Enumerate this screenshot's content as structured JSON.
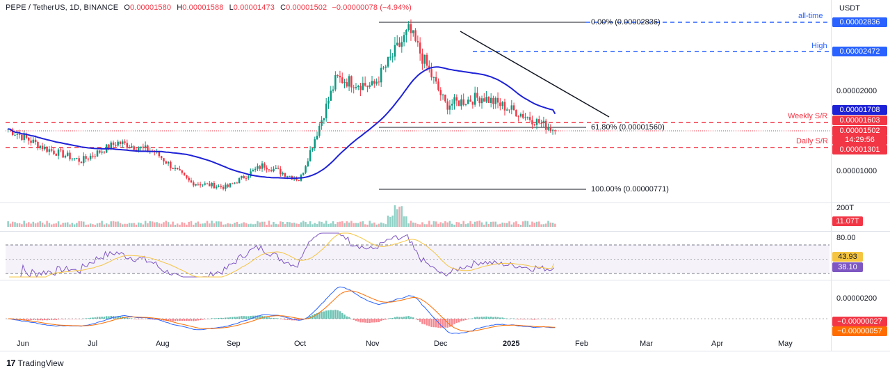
{
  "header": {
    "symbol": "PEPE / TetherUS, 1D, BINANCE",
    "o_key": "O",
    "o_val": "0.00001580",
    "h_key": "H",
    "h_val": "0.00001588",
    "l_key": "L",
    "l_val": "0.00001473",
    "c_key": "C",
    "c_val": "0.00001502",
    "change": "−0.00000078 (−4.94%)"
  },
  "quote_currency": "USDT",
  "brand": "TradingView",
  "colors": {
    "up": "#089981",
    "down": "#f23645",
    "ma": "#1e22d6",
    "rsi": "#7e57c2",
    "rsi_ma": "#f5c542",
    "macd": "#2962ff",
    "signal": "#ff6d00",
    "accent": "#2962ff"
  },
  "price_levels": {
    "all_time_high_label": "all-time",
    "high_label": "High",
    "weekly_sr_label": "Weekly S/R",
    "daily_sr_label": "Daily S/R",
    "fib_0_label": "0.00% (0.00002836)",
    "fib_618_label": "61.80% (0.00001560)",
    "fib_100_label": "100.00% (0.00000771)",
    "tag_ath": "0.00002836",
    "tag_high": "0.00002472",
    "tag_ma": "0.00001708",
    "tag_weekly": "0.00001603",
    "tag_last": "0.00001502",
    "tag_countdown": "14:29:56",
    "tag_daily": "0.00001301",
    "tag_volume": "11.07T",
    "tag_rsi_ma": "43.93",
    "tag_rsi": "38.10",
    "tag_macd": "−0.00000027",
    "tag_signal": "−0.00000057"
  },
  "chart_data": {
    "type": "candlestick",
    "symbol": "PEPE/USDT",
    "timeframe": "1D",
    "price_axis_ticks": [
      "0.00002000",
      "0.00001000"
    ],
    "volume_axis_ticks": [
      "200T"
    ],
    "rsi_axis_ticks": [
      "80.00"
    ],
    "macd_axis_ticks": [
      "0.00000200"
    ],
    "x_axis_ticks": [
      "Jun",
      "Jul",
      "Aug",
      "Sep",
      "Oct",
      "Nov",
      "Dec",
      "2025",
      "Feb",
      "Mar",
      "Apr",
      "May"
    ],
    "close_path": [
      {
        "t": "Jun",
        "close": 1.52e-05
      },
      {
        "t": "mid-Jun",
        "close": 1.28e-05
      },
      {
        "t": "Jul",
        "close": 1.12e-05
      },
      {
        "t": "mid-Jul",
        "close": 1.35e-05
      },
      {
        "t": "Aug",
        "close": 1.24e-05
      },
      {
        "t": "early-Aug",
        "close": 8.5e-06
      },
      {
        "t": "Sep",
        "close": 7.9e-06
      },
      {
        "t": "Oct",
        "close": 1.07e-05
      },
      {
        "t": "Nov",
        "close": 8.8e-06
      },
      {
        "t": "mid-Nov",
        "close": 2.15e-05
      },
      {
        "t": "Dec",
        "close": 2.05e-05
      },
      {
        "t": "early-Dec",
        "close": 2.75e-05
      },
      {
        "t": "late-Dec",
        "close": 1.82e-05
      },
      {
        "t": "2025",
        "close": 1.92e-05
      },
      {
        "t": "mid-Jan",
        "close": 1.72e-05
      },
      {
        "t": "late-Jan",
        "close": 1.502e-05
      }
    ],
    "ma_last": 1.708e-05,
    "fib_levels": [
      {
        "level": "0.00%",
        "price": 2.836e-05
      },
      {
        "level": "61.80%",
        "price": 1.56e-05
      },
      {
        "level": "100.00%",
        "price": 7.71e-06
      }
    ],
    "horizontal_levels": [
      {
        "name": "all-time",
        "price": 2.836e-05
      },
      {
        "name": "High",
        "price": 2.472e-05
      },
      {
        "name": "Weekly S/R",
        "price": 1.603e-05
      },
      {
        "name": "Daily S/R",
        "price": 1.301e-05
      }
    ],
    "volume_last": "11.07T",
    "rsi": 38.1,
    "rsi_ma": 43.93,
    "rsi_band": [
      30,
      70
    ],
    "macd": -2.7e-07,
    "macd_signal": -5.7e-07
  }
}
